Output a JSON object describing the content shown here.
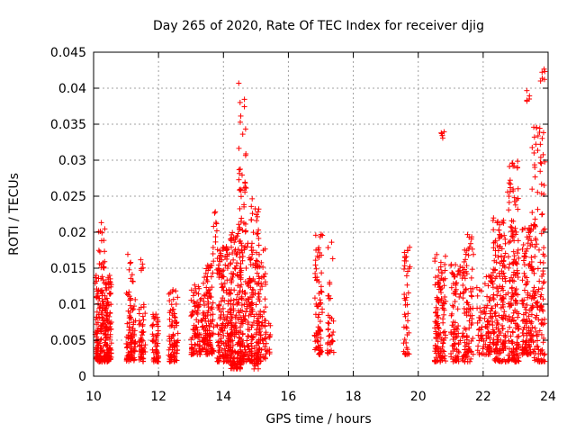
{
  "chart_data": {
    "type": "scatter",
    "title": "Day 265 of 2020, Rate Of TEC Index for receiver djig",
    "xlabel": "GPS time / hours",
    "ylabel": "ROTI / TECUs",
    "xlim": [
      10,
      24
    ],
    "ylim": [
      0,
      0.045
    ],
    "x_ticks": [
      10,
      12,
      14,
      16,
      18,
      20,
      22,
      24
    ],
    "x_tick_labels": [
      "10",
      "12",
      "14",
      "16",
      "18",
      "20",
      "22",
      "24"
    ],
    "y_ticks": [
      0,
      0.005,
      0.01,
      0.015,
      0.02,
      0.025,
      0.03,
      0.035,
      0.04,
      0.045
    ],
    "y_tick_labels": [
      "0",
      "0.005",
      "0.01",
      "0.015",
      "0.02",
      "0.025",
      "0.03",
      "0.035",
      "0.04",
      "0.045"
    ],
    "grid": true,
    "marker": "+",
    "color": "#ff0000",
    "clusters": [
      {
        "x": [
          10.05,
          10.55
        ],
        "y": [
          0.002,
          0.014
        ],
        "n": 260
      },
      {
        "x": [
          10.15,
          10.35
        ],
        "y": [
          0.015,
          0.023
        ],
        "n": 18
      },
      {
        "x": [
          11.0,
          11.3
        ],
        "y": [
          0.002,
          0.012
        ],
        "n": 90
      },
      {
        "x": [
          11.05,
          11.25
        ],
        "y": [
          0.013,
          0.017
        ],
        "n": 8
      },
      {
        "x": [
          11.4,
          11.6
        ],
        "y": [
          0.002,
          0.01
        ],
        "n": 50
      },
      {
        "x": [
          11.45,
          11.55
        ],
        "y": [
          0.014,
          0.017
        ],
        "n": 5
      },
      {
        "x": [
          11.8,
          12.0
        ],
        "y": [
          0.002,
          0.009
        ],
        "n": 50
      },
      {
        "x": [
          12.3,
          12.6
        ],
        "y": [
          0.002,
          0.012
        ],
        "n": 80
      },
      {
        "x": [
          13.0,
          13.4
        ],
        "y": [
          0.003,
          0.013
        ],
        "n": 100
      },
      {
        "x": [
          13.4,
          13.7
        ],
        "y": [
          0.003,
          0.016
        ],
        "n": 110
      },
      {
        "x": [
          13.65,
          13.8
        ],
        "y": [
          0.017,
          0.024
        ],
        "n": 10
      },
      {
        "x": [
          13.8,
          14.25
        ],
        "y": [
          0.002,
          0.018
        ],
        "n": 170
      },
      {
        "x": [
          14.2,
          14.55
        ],
        "y": [
          0.001,
          0.02
        ],
        "n": 160
      },
      {
        "x": [
          14.45,
          14.7
        ],
        "y": [
          0.02,
          0.041
        ],
        "n": 40
      },
      {
        "x": [
          14.5,
          14.9
        ],
        "y": [
          0.002,
          0.019
        ],
        "n": 150
      },
      {
        "x": [
          14.85,
          15.1
        ],
        "y": [
          0.001,
          0.025
        ],
        "n": 80
      },
      {
        "x": [
          15.0,
          15.3
        ],
        "y": [
          0.002,
          0.018
        ],
        "n": 90
      },
      {
        "x": [
          15.3,
          15.45
        ],
        "y": [
          0.003,
          0.008
        ],
        "n": 15
      },
      {
        "x": [
          16.8,
          17.05
        ],
        "y": [
          0.003,
          0.02
        ],
        "n": 80
      },
      {
        "x": [
          17.2,
          17.4
        ],
        "y": [
          0.003,
          0.02
        ],
        "n": 35
      },
      {
        "x": [
          19.55,
          19.75
        ],
        "y": [
          0.003,
          0.019
        ],
        "n": 45
      },
      {
        "x": [
          20.5,
          20.85
        ],
        "y": [
          0.002,
          0.017
        ],
        "n": 130
      },
      {
        "x": [
          20.7,
          20.8
        ],
        "y": [
          0.033,
          0.034
        ],
        "n": 5
      },
      {
        "x": [
          21.0,
          21.3
        ],
        "y": [
          0.002,
          0.016
        ],
        "n": 80
      },
      {
        "x": [
          21.35,
          21.7
        ],
        "y": [
          0.002,
          0.02
        ],
        "n": 100
      },
      {
        "x": [
          21.8,
          22.0
        ],
        "y": [
          0.003,
          0.013
        ],
        "n": 30
      },
      {
        "x": [
          22.0,
          22.3
        ],
        "y": [
          0.003,
          0.014
        ],
        "n": 70
      },
      {
        "x": [
          22.3,
          22.7
        ],
        "y": [
          0.002,
          0.022
        ],
        "n": 170
      },
      {
        "x": [
          22.75,
          23.1
        ],
        "y": [
          0.002,
          0.03
        ],
        "n": 170
      },
      {
        "x": [
          23.2,
          23.5
        ],
        "y": [
          0.003,
          0.021
        ],
        "n": 130
      },
      {
        "x": [
          23.3,
          23.45
        ],
        "y": [
          0.038,
          0.04
        ],
        "n": 5
      },
      {
        "x": [
          23.5,
          23.9
        ],
        "y": [
          0.002,
          0.035
        ],
        "n": 150
      },
      {
        "x": [
          23.75,
          23.9
        ],
        "y": [
          0.041,
          0.0445
        ],
        "n": 6
      }
    ]
  }
}
